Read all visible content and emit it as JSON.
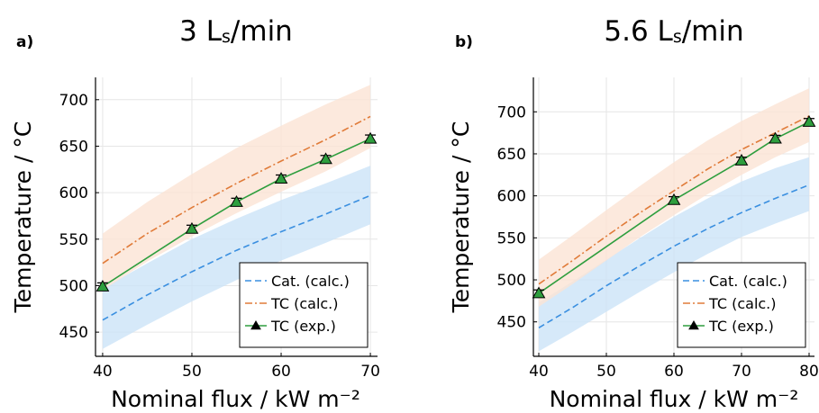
{
  "chart_data": [
    {
      "type": "line",
      "panel": "a)",
      "title": "3 L",
      "title_subscript": "s",
      "title_suffix": "/min",
      "xlabel": "Nominal flux / kW m⁻²",
      "ylabel": "Temperature / °C",
      "xlim": [
        39.2,
        70.8
      ],
      "ylim": [
        424,
        724
      ],
      "xticks": [
        40,
        50,
        60,
        70
      ],
      "yticks": [
        450,
        500,
        550,
        600,
        650,
        700
      ],
      "grid": true,
      "legend_position": "bottom-right",
      "series": [
        {
          "name": "Cat. (calc.)",
          "style": "dashed",
          "color": "#3a8fe0",
          "band_color": "#cce4f7",
          "x": [
            40,
            45,
            50,
            55,
            60,
            65,
            70
          ],
          "y": [
            463,
            490,
            515,
            538,
            558,
            577,
            597
          ],
          "y_low": [
            432,
            458,
            483,
            506,
            527,
            546,
            566
          ],
          "y_high": [
            497,
            524,
            550,
            572,
            592,
            610,
            629
          ]
        },
        {
          "name": "TC (calc.)",
          "style": "dashdot",
          "color": "#e07b39",
          "band_color": "#fbe3d4",
          "x": [
            40,
            45,
            50,
            55,
            60,
            65,
            70
          ],
          "y": [
            524,
            556,
            584,
            610,
            634,
            657,
            682
          ],
          "y_low": [
            495,
            526,
            553,
            578,
            601,
            623,
            648
          ],
          "y_high": [
            556,
            590,
            620,
            648,
            672,
            695,
            716
          ]
        },
        {
          "name": "TC (exp.)",
          "style": "solid-markers",
          "color": "#2e9e3e",
          "marker_color": "#2e9e3e",
          "x": [
            40,
            50,
            55,
            60,
            65,
            70
          ],
          "y": [
            499,
            561,
            590,
            615,
            636,
            658
          ],
          "error": [
            4,
            4,
            4,
            4,
            4,
            4
          ]
        }
      ]
    },
    {
      "type": "line",
      "panel": "b)",
      "title": "5.6 L",
      "title_subscript": "s",
      "title_suffix": "/min",
      "xlabel": "Nominal flux / kW m⁻²",
      "ylabel": "Temperature / °C",
      "xlim": [
        39.2,
        80.8
      ],
      "ylim": [
        409,
        741
      ],
      "xticks": [
        40,
        50,
        60,
        70,
        80
      ],
      "yticks": [
        450,
        500,
        550,
        600,
        650,
        700
      ],
      "grid": true,
      "legend_position": "bottom-right",
      "series": [
        {
          "name": "Cat. (calc.)",
          "style": "dashed",
          "color": "#3a8fe0",
          "band_color": "#cce4f7",
          "x": [
            40,
            45,
            50,
            55,
            60,
            65,
            70,
            75,
            80
          ],
          "y": [
            443,
            467,
            493,
            517,
            540,
            561,
            580,
            597,
            613
          ],
          "y_low": [
            415,
            438,
            462,
            486,
            509,
            531,
            551,
            567,
            582
          ],
          "y_high": [
            473,
            498,
            524,
            550,
            575,
            597,
            617,
            633,
            646
          ]
        },
        {
          "name": "TC (calc.)",
          "style": "dashdot",
          "color": "#e07b39",
          "band_color": "#fbe3d4",
          "x": [
            40,
            45,
            50,
            55,
            60,
            65,
            70,
            75,
            80
          ],
          "y": [
            495,
            523,
            552,
            580,
            606,
            632,
            655,
            675,
            695
          ],
          "y_low": [
            468,
            495,
            523,
            551,
            577,
            602,
            625,
            646,
            664
          ],
          "y_high": [
            524,
            553,
            583,
            612,
            640,
            666,
            689,
            709,
            728
          ]
        },
        {
          "name": "TC (exp.)",
          "style": "solid-markers",
          "color": "#2e9e3e",
          "marker_color": "#2e9e3e",
          "x": [
            40,
            60,
            70,
            75,
            80
          ],
          "y": [
            484,
            595,
            642,
            668,
            688
          ],
          "error": [
            4,
            4,
            4,
            4,
            4
          ]
        }
      ]
    }
  ]
}
